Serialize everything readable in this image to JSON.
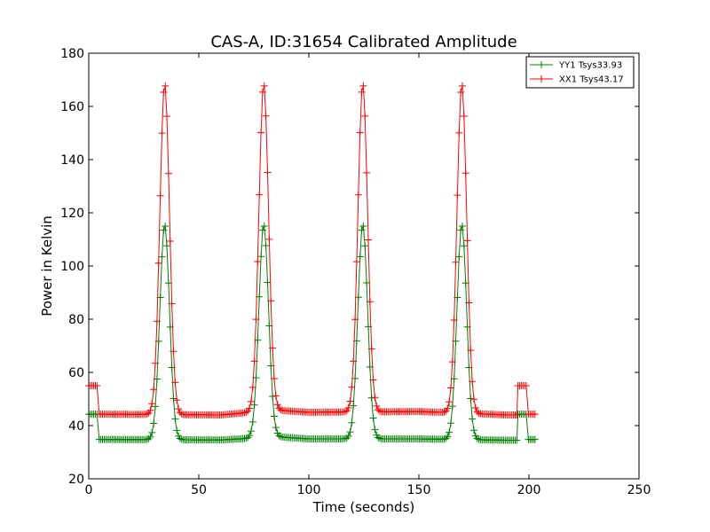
{
  "chart_data": {
    "type": "line",
    "title": "CAS-A, ID:31654 Calibrated Amplitude",
    "xlabel": "Time (seconds)",
    "ylabel": "Power in Kelvin",
    "xlim": [
      0,
      250
    ],
    "ylim": [
      20,
      180
    ],
    "xticks": [
      0,
      50,
      100,
      150,
      200,
      250
    ],
    "yticks": [
      20,
      40,
      60,
      80,
      100,
      120,
      140,
      160,
      180
    ],
    "grid": false,
    "legend_position": "top-right",
    "marker": "plus",
    "peaks_at_seconds": [
      34.5,
      79.5,
      124.5,
      169.5
    ],
    "series": [
      {
        "name": "YY1 Tsys33.93",
        "color": "#008000",
        "cal_start": {
          "x_from": 0,
          "x_to": 4,
          "value": 44.3
        },
        "baseline": [
          [
            5,
            34.8
          ],
          [
            60,
            34.6
          ],
          [
            85,
            35.8
          ],
          [
            100,
            35.0
          ],
          [
            150,
            35.0
          ],
          [
            190,
            34.5
          ]
        ],
        "peak_height": 115.5,
        "cal_end": {
          "x_from": 195,
          "x_to": 199,
          "value": 44.3
        },
        "tail": {
          "x_from": 199,
          "x_to": 203,
          "value": 34.8
        }
      },
      {
        "name": "XX1 Tsys43.17",
        "color": "#ff0000",
        "cal_start": {
          "x_from": 0,
          "x_to": 4,
          "value": 55.0
        },
        "baseline": [
          [
            5,
            44.3
          ],
          [
            60,
            44.0
          ],
          [
            85,
            45.8
          ],
          [
            100,
            45.0
          ],
          [
            150,
            45.3
          ],
          [
            190,
            44.0
          ]
        ],
        "peak_height": 168.5,
        "cal_end": {
          "x_from": 195,
          "x_to": 199,
          "value": 55.0
        },
        "tail": {
          "x_from": 199,
          "x_to": 203,
          "value": 44.3
        }
      }
    ]
  }
}
